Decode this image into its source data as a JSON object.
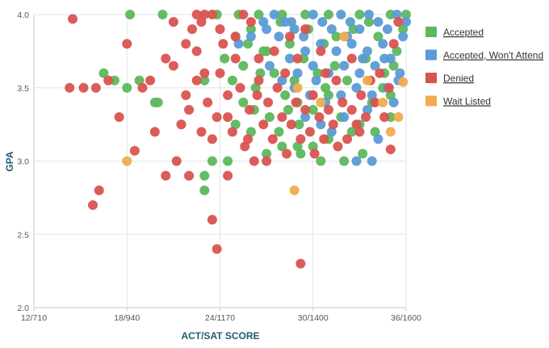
{
  "chart_data": {
    "type": "scatter",
    "title": "",
    "xlabel": "ACT/SAT SCORE",
    "ylabel": "GPA",
    "xlim": [
      12,
      36
    ],
    "ylim": [
      2.0,
      4.0
    ],
    "grid": true,
    "legend_position": "right",
    "x_ticks": [
      {
        "value": 12,
        "label": "12/710"
      },
      {
        "value": 18,
        "label": "18/940"
      },
      {
        "value": 24,
        "label": "24/1170"
      },
      {
        "value": 30,
        "label": "30/1400"
      },
      {
        "value": 36,
        "label": "36/1600"
      }
    ],
    "y_ticks": [
      {
        "value": 2.0,
        "label": "2.0"
      },
      {
        "value": 2.5,
        "label": "2.5"
      },
      {
        "value": 3.0,
        "label": "3.0"
      },
      {
        "value": 3.5,
        "label": "3.5"
      },
      {
        "value": 4.0,
        "label": "4.0"
      }
    ],
    "series": [
      {
        "name": "Accepted",
        "color": "#5cb85c",
        "points": [
          [
            18.2,
            4.0
          ],
          [
            20.3,
            4.0
          ],
          [
            23.8,
            4.0
          ],
          [
            25.2,
            4.0
          ],
          [
            26.5,
            4.0
          ],
          [
            28.0,
            4.0
          ],
          [
            29.5,
            4.0
          ],
          [
            31.0,
            4.0
          ],
          [
            33.0,
            4.0
          ],
          [
            35.0,
            4.0
          ],
          [
            36.0,
            4.0
          ],
          [
            17.2,
            3.55
          ],
          [
            18.8,
            3.55
          ],
          [
            18.0,
            3.5
          ],
          [
            16.5,
            3.6
          ],
          [
            19.8,
            3.4
          ],
          [
            20.0,
            3.4
          ],
          [
            23.0,
            3.55
          ],
          [
            24.3,
            3.7
          ],
          [
            25.0,
            3.85
          ],
          [
            25.5,
            3.65
          ],
          [
            26.0,
            3.9
          ],
          [
            26.3,
            3.5
          ],
          [
            26.8,
            3.75
          ],
          [
            27.2,
            3.3
          ],
          [
            27.5,
            3.6
          ],
          [
            27.9,
            3.95
          ],
          [
            28.2,
            3.45
          ],
          [
            28.5,
            3.8
          ],
          [
            28.8,
            3.55
          ],
          [
            29.1,
            3.25
          ],
          [
            29.4,
            3.7
          ],
          [
            29.7,
            3.9
          ],
          [
            30.0,
            3.35
          ],
          [
            30.3,
            3.6
          ],
          [
            30.7,
            3.8
          ],
          [
            31.0,
            3.45
          ],
          [
            31.4,
            3.65
          ],
          [
            31.8,
            3.3
          ],
          [
            32.2,
            3.55
          ],
          [
            32.6,
            3.9
          ],
          [
            33.0,
            3.25
          ],
          [
            33.4,
            3.7
          ],
          [
            33.8,
            3.4
          ],
          [
            34.2,
            3.85
          ],
          [
            34.6,
            3.6
          ],
          [
            35.0,
            3.45
          ],
          [
            35.4,
            3.75
          ],
          [
            35.8,
            3.9
          ],
          [
            35.0,
            3.3
          ],
          [
            34.0,
            3.2
          ],
          [
            32.5,
            3.2
          ],
          [
            31.0,
            3.15
          ],
          [
            29.0,
            3.1
          ],
          [
            28.0,
            3.1
          ],
          [
            27.0,
            3.05
          ],
          [
            26.0,
            3.2
          ],
          [
            25.0,
            3.25
          ],
          [
            24.5,
            3.0
          ],
          [
            23.5,
            3.0
          ],
          [
            23.0,
            2.9
          ],
          [
            23.0,
            2.8
          ],
          [
            25.5,
            3.4
          ],
          [
            26.2,
            3.35
          ],
          [
            27.8,
            3.2
          ],
          [
            30.5,
            3.0
          ],
          [
            32.0,
            3.0
          ],
          [
            29.2,
            3.05
          ],
          [
            30.0,
            3.1
          ],
          [
            33.2,
            3.05
          ],
          [
            34.5,
            3.5
          ],
          [
            27.0,
            3.75
          ],
          [
            25.8,
            3.8
          ],
          [
            24.8,
            3.55
          ],
          [
            26.6,
            3.6
          ],
          [
            28.4,
            3.35
          ],
          [
            31.5,
            3.85
          ],
          [
            33.6,
            3.95
          ],
          [
            35.2,
            3.65
          ],
          [
            30.8,
            3.5
          ],
          [
            29.0,
            3.4
          ]
        ]
      },
      {
        "name": "Accepted, Won't Attend",
        "color": "#5b9bd5",
        "points": [
          [
            27.5,
            4.0
          ],
          [
            28.2,
            3.95
          ],
          [
            28.8,
            3.9
          ],
          [
            29.4,
            3.85
          ],
          [
            30.0,
            4.0
          ],
          [
            30.6,
            3.95
          ],
          [
            31.2,
            3.9
          ],
          [
            31.8,
            4.0
          ],
          [
            32.4,
            3.95
          ],
          [
            33.0,
            3.9
          ],
          [
            33.6,
            4.0
          ],
          [
            34.2,
            3.95
          ],
          [
            34.8,
            3.9
          ],
          [
            35.4,
            4.0
          ],
          [
            36.0,
            3.95
          ],
          [
            35.8,
            3.85
          ],
          [
            34.5,
            3.8
          ],
          [
            33.5,
            3.75
          ],
          [
            32.5,
            3.8
          ],
          [
            31.5,
            3.75
          ],
          [
            30.5,
            3.8
          ],
          [
            29.5,
            3.75
          ],
          [
            28.5,
            3.7
          ],
          [
            27.8,
            3.85
          ],
          [
            26.8,
            3.95
          ],
          [
            26.0,
            3.85
          ],
          [
            25.2,
            3.8
          ],
          [
            29.0,
            3.6
          ],
          [
            30.0,
            3.65
          ],
          [
            31.0,
            3.6
          ],
          [
            32.0,
            3.65
          ],
          [
            33.0,
            3.6
          ],
          [
            34.0,
            3.65
          ],
          [
            35.0,
            3.7
          ],
          [
            35.6,
            3.6
          ],
          [
            34.8,
            3.5
          ],
          [
            33.8,
            3.45
          ],
          [
            32.8,
            3.5
          ],
          [
            31.8,
            3.45
          ],
          [
            30.8,
            3.4
          ],
          [
            29.8,
            3.45
          ],
          [
            28.8,
            3.5
          ],
          [
            28.0,
            3.55
          ],
          [
            27.2,
            3.65
          ],
          [
            29.5,
            3.3
          ],
          [
            30.5,
            3.25
          ],
          [
            32.0,
            3.3
          ],
          [
            33.5,
            3.35
          ],
          [
            35.2,
            3.4
          ],
          [
            32.8,
            3.0
          ],
          [
            33.8,
            3.0
          ],
          [
            35.5,
            3.55
          ],
          [
            34.2,
            3.15
          ],
          [
            31.2,
            3.2
          ],
          [
            30.2,
            3.55
          ],
          [
            32.2,
            3.85
          ],
          [
            33.2,
            3.7
          ],
          [
            34.6,
            3.7
          ],
          [
            28.6,
            3.95
          ],
          [
            27.0,
            3.9
          ]
        ]
      },
      {
        "name": "Denied",
        "color": "#d9534f",
        "points": [
          [
            14.5,
            3.97
          ],
          [
            14.3,
            3.5
          ],
          [
            15.2,
            3.5
          ],
          [
            16.0,
            3.5
          ],
          [
            16.8,
            3.55
          ],
          [
            16.2,
            2.8
          ],
          [
            15.8,
            2.7
          ],
          [
            17.5,
            3.3
          ],
          [
            18.0,
            3.8
          ],
          [
            18.5,
            3.07
          ],
          [
            19.0,
            3.5
          ],
          [
            19.5,
            3.55
          ],
          [
            19.8,
            3.2
          ],
          [
            20.5,
            3.7
          ],
          [
            21.0,
            3.65
          ],
          [
            20.5,
            2.9
          ],
          [
            21.2,
            3.0
          ],
          [
            21.5,
            3.25
          ],
          [
            21.8,
            3.45
          ],
          [
            22.0,
            3.35
          ],
          [
            21.8,
            3.8
          ],
          [
            22.2,
            3.9
          ],
          [
            22.5,
            4.0
          ],
          [
            22.8,
            3.95
          ],
          [
            23.0,
            4.0
          ],
          [
            23.5,
            4.0
          ],
          [
            22.5,
            3.55
          ],
          [
            22.8,
            3.2
          ],
          [
            23.2,
            3.4
          ],
          [
            23.5,
            3.15
          ],
          [
            23.8,
            3.3
          ],
          [
            24.0,
            3.6
          ],
          [
            24.2,
            3.8
          ],
          [
            24.5,
            3.45
          ],
          [
            24.8,
            3.2
          ],
          [
            25.0,
            3.7
          ],
          [
            25.3,
            3.5
          ],
          [
            25.6,
            3.1
          ],
          [
            25.9,
            3.35
          ],
          [
            26.2,
            3.0
          ],
          [
            26.5,
            3.55
          ],
          [
            26.8,
            3.25
          ],
          [
            27.1,
            3.4
          ],
          [
            27.4,
            3.15
          ],
          [
            27.7,
            3.5
          ],
          [
            28.0,
            3.3
          ],
          [
            28.3,
            3.05
          ],
          [
            28.6,
            3.25
          ],
          [
            28.9,
            3.4
          ],
          [
            29.2,
            3.15
          ],
          [
            29.5,
            3.35
          ],
          [
            29.8,
            3.2
          ],
          [
            30.1,
            3.05
          ],
          [
            30.4,
            3.3
          ],
          [
            30.7,
            3.15
          ],
          [
            31.0,
            3.35
          ],
          [
            31.3,
            3.25
          ],
          [
            31.6,
            3.1
          ],
          [
            31.9,
            3.4
          ],
          [
            32.2,
            3.15
          ],
          [
            32.5,
            3.35
          ],
          [
            32.8,
            3.25
          ],
          [
            33.1,
            3.45
          ],
          [
            33.4,
            3.3
          ],
          [
            33.7,
            3.55
          ],
          [
            34.0,
            3.4
          ],
          [
            34.3,
            3.6
          ],
          [
            34.6,
            3.3
          ],
          [
            34.9,
            3.5
          ],
          [
            35.2,
            3.8
          ],
          [
            35.5,
            3.95
          ],
          [
            35.0,
            3.08
          ],
          [
            23.5,
            2.6
          ],
          [
            23.8,
            2.4
          ],
          [
            24.5,
            2.9
          ],
          [
            22.0,
            2.9
          ],
          [
            29.2,
            2.3
          ],
          [
            25.5,
            4.0
          ],
          [
            26.0,
            3.95
          ],
          [
            24.0,
            3.9
          ],
          [
            25.0,
            3.85
          ],
          [
            26.5,
            3.7
          ],
          [
            27.5,
            3.75
          ],
          [
            28.5,
            3.85
          ],
          [
            29.5,
            3.9
          ],
          [
            30.5,
            3.75
          ],
          [
            31.5,
            3.55
          ],
          [
            32.5,
            3.7
          ],
          [
            27.0,
            3.0
          ],
          [
            30.0,
            3.45
          ],
          [
            21.0,
            3.95
          ],
          [
            22.5,
            3.75
          ],
          [
            23.0,
            3.6
          ],
          [
            24.5,
            3.3
          ],
          [
            25.8,
            3.15
          ],
          [
            26.4,
            3.45
          ],
          [
            28.2,
            3.6
          ],
          [
            29.0,
            3.7
          ],
          [
            30.8,
            3.6
          ],
          [
            33.0,
            3.2
          ]
        ]
      },
      {
        "name": "Wait Listed",
        "color": "#f0ad4e",
        "points": [
          [
            18.0,
            3.0
          ],
          [
            28.8,
            2.8
          ],
          [
            35.0,
            3.2
          ],
          [
            35.5,
            3.3
          ],
          [
            35.8,
            3.54
          ],
          [
            34.5,
            3.4
          ],
          [
            33.5,
            3.55
          ],
          [
            32.0,
            3.85
          ],
          [
            30.5,
            3.4
          ],
          [
            29.0,
            3.5
          ]
        ]
      }
    ]
  }
}
